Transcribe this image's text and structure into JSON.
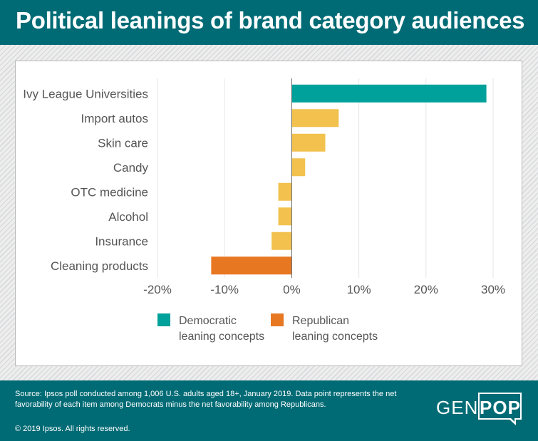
{
  "header": {
    "title": "Political leanings of brand category audiences"
  },
  "colors": {
    "democratic": "#00a19a",
    "republican": "#e87722",
    "neutral": "#f2c14e",
    "brand": "#006b75"
  },
  "chart_data": {
    "type": "bar",
    "orientation": "horizontal",
    "categories": [
      "Ivy League Universities",
      "Import autos",
      "Skin care",
      "Candy",
      "OTC medicine",
      "Alcohol",
      "Insurance",
      "Cleaning products"
    ],
    "values": [
      29,
      7,
      5,
      2,
      -2,
      -2,
      -3,
      -12
    ],
    "bar_groups": [
      "democratic",
      "neutral",
      "neutral",
      "neutral",
      "neutral",
      "neutral",
      "neutral",
      "republican"
    ],
    "xlim": [
      -20,
      30
    ],
    "xticks": [
      -20,
      -10,
      0,
      10,
      20,
      30
    ],
    "tick_labels": [
      "-20%",
      "-10%",
      "0%",
      "10%",
      "20%",
      "30%"
    ],
    "grid": true,
    "legend": [
      {
        "key": "democratic",
        "lines": [
          "Democratic",
          "leaning concepts"
        ]
      },
      {
        "key": "republican",
        "lines": [
          "Republican",
          "leaning concepts"
        ]
      }
    ],
    "legend_position": "bottom"
  },
  "footer": {
    "source": "Source: Ipsos poll conducted among 1,006 U.S. adults aged 18+, January 2019. Data point represents the net favorability of each item among Democrats minus the net favorability among Republicans.",
    "copyright": "© 2019 Ipsos. All rights reserved.",
    "logo_left": "GEN",
    "logo_right": "POP"
  }
}
